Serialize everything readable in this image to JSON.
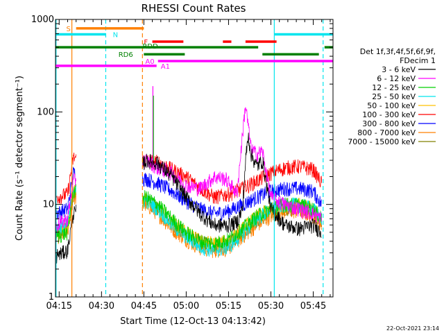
{
  "chart_data": {
    "type": "line",
    "title": "RHESSI Count Rates",
    "xlabel": "Start Time (12-Oct-13 04:13:42)",
    "ylabel": "Count Rate (s⁻¹ detector segment⁻¹)",
    "yscale": "log",
    "ylim": [
      1,
      1000
    ],
    "xlim_minutes": [
      253.7,
      352
    ],
    "x_tick_labels": [
      {
        "minutes": 255,
        "label": "04:15"
      },
      {
        "minutes": 270,
        "label": "04:30"
      },
      {
        "minutes": 285,
        "label": "04:45"
      },
      {
        "minutes": 300,
        "label": "05:00"
      },
      {
        "minutes": 315,
        "label": "05:15"
      },
      {
        "minutes": 330,
        "label": "05:30"
      },
      {
        "minutes": 345,
        "label": "05:45"
      }
    ],
    "y_tick_labels": [
      {
        "value": 1,
        "label": "1"
      },
      {
        "value": 10,
        "label": "10"
      },
      {
        "value": 100,
        "label": "100"
      },
      {
        "value": 1000,
        "label": "1000"
      }
    ],
    "legend_header": [
      "Det 1f,3f,4f,5f,6f,9f,",
      "FDecim 1"
    ],
    "gaps": [
      [
        261,
        284.5
      ]
    ],
    "series": [
      {
        "name": "3 - 6 keV",
        "color": "#000000",
        "t": [
          254,
          258,
          260,
          286,
          290,
          295,
          300,
          305,
          310,
          315,
          318,
          320,
          321,
          322,
          323,
          325,
          327,
          330,
          335,
          340,
          345,
          348
        ],
        "values": [
          2.8,
          3.2,
          8,
          30,
          28,
          20,
          12,
          8,
          6,
          6,
          6.5,
          9,
          30,
          55,
          35,
          26,
          30,
          9,
          6,
          5.5,
          6,
          5
        ]
      },
      {
        "name": "6 - 12 keV",
        "color": "#ff00ff",
        "t": [
          254,
          258,
          260,
          286,
          290,
          295,
          300,
          305,
          310,
          314,
          316,
          318,
          320,
          321,
          322,
          323,
          325,
          327,
          330,
          335,
          340,
          345,
          348
        ],
        "values": [
          6,
          7,
          18,
          30,
          25,
          22,
          16,
          15,
          20,
          19,
          16,
          13,
          60,
          120,
          70,
          40,
          35,
          38,
          12,
          10,
          9,
          8,
          7
        ]
      },
      {
        "name": "12 - 25 keV",
        "color": "#00d000",
        "t": [
          254,
          258,
          260,
          286,
          290,
          295,
          300,
          305,
          310,
          315,
          320,
          325,
          330,
          335,
          340,
          345,
          348
        ],
        "values": [
          4.5,
          5,
          14,
          12,
          10,
          7,
          5,
          4,
          3.8,
          4.2,
          5.5,
          7.5,
          9,
          10,
          10,
          9,
          7
        ]
      },
      {
        "name": "25 - 50 keV",
        "color": "#00e5ee",
        "t": [
          254,
          258,
          260,
          286,
          290,
          295,
          300,
          305,
          310,
          315,
          320,
          325,
          330,
          335,
          340,
          345,
          348
        ],
        "values": [
          5.5,
          6,
          15,
          11,
          9,
          6,
          4.5,
          3.5,
          3.2,
          3.5,
          4.8,
          7,
          9,
          10,
          10,
          9,
          7
        ]
      },
      {
        "name": "50 - 100 keV",
        "color": "#ffc000",
        "t": [
          254,
          258,
          260,
          286,
          290,
          295,
          300,
          305,
          310,
          315,
          320,
          325,
          330,
          335,
          340,
          345,
          348
        ],
        "values": [
          5,
          5.5,
          14,
          11,
          9,
          6.5,
          5,
          4,
          3.8,
          4,
          5.5,
          7.5,
          9,
          10,
          10,
          9,
          7
        ]
      },
      {
        "name": "100 - 300 keV",
        "color": "#ff0000",
        "t": [
          254,
          258,
          260,
          286,
          290,
          295,
          300,
          305,
          310,
          315,
          320,
          325,
          330,
          335,
          340,
          345,
          348
        ],
        "values": [
          12,
          13,
          32,
          30,
          29,
          24,
          20,
          15,
          12,
          13,
          15,
          18,
          22,
          25,
          26,
          24,
          17
        ]
      },
      {
        "name": "300 - 800 keV",
        "color": "#0000ff",
        "t": [
          254,
          258,
          260,
          286,
          290,
          295,
          300,
          305,
          310,
          315,
          320,
          325,
          330,
          335,
          340,
          345,
          348
        ],
        "values": [
          8,
          9,
          22,
          19,
          17,
          14,
          11,
          9,
          8,
          8.5,
          10,
          12,
          14,
          15,
          15,
          14,
          10
        ]
      },
      {
        "name": "800 - 7000 keV",
        "color": "#ff8000",
        "t": [
          254,
          258,
          260,
          286,
          290,
          295,
          300,
          305,
          310,
          315,
          320,
          325,
          330,
          335,
          340,
          345,
          348
        ],
        "values": [
          4.5,
          5,
          12,
          10,
          8,
          5.5,
          4.2,
          3.4,
          3.2,
          3.4,
          4.5,
          6,
          7.5,
          8.5,
          8.5,
          7.5,
          6
        ]
      },
      {
        "name": "7000 - 15000 keV",
        "color": "#808000",
        "t": [
          254,
          258,
          260,
          286,
          290,
          295,
          300,
          305,
          310,
          315,
          320,
          325,
          330,
          335,
          340,
          345,
          348
        ],
        "values": [
          5,
          5.5,
          13,
          11,
          9,
          6,
          4.8,
          4,
          3.6,
          3.8,
          5,
          6.8,
          8.2,
          9.2,
          9.2,
          8.2,
          6.5
        ]
      }
    ],
    "spikes": [
      {
        "t": 288.2,
        "value": 190,
        "color": "#ff00ff"
      },
      {
        "t": 288.4,
        "value": 150,
        "color": "#00d000"
      }
    ],
    "vlines": [
      {
        "t": 253.9,
        "style": "solid",
        "color": "#00e5ee"
      },
      {
        "t": 259.5,
        "style": "solid",
        "color": "#ff8000"
      },
      {
        "t": 271.5,
        "style": "dashed",
        "color": "#00e5ee"
      },
      {
        "t": 284.5,
        "style": "dashed",
        "color": "#ff8000"
      },
      {
        "t": 331.2,
        "style": "solid",
        "color": "#00e5ee"
      },
      {
        "t": 348.5,
        "style": "dashed",
        "color": "#00e5ee"
      }
    ],
    "flag_bars": [
      {
        "label": "S",
        "color": "#ff8000",
        "segments": [
          [
            261,
            285
          ]
        ],
        "label_t": 257.5,
        "label_value": 800,
        "bar_value": 800
      },
      {
        "label": "N",
        "color": "#00e5ee",
        "segments": [
          [
            253.7,
            271.5
          ],
          [
            331.2,
            352
          ]
        ],
        "label_t": 274,
        "label_value": 690,
        "bar_value": 690
      },
      {
        "label": "F",
        "color": "#ff0000",
        "segments": [
          [
            288,
            299
          ],
          [
            313,
            316
          ],
          [
            321,
            332
          ]
        ],
        "label_t": 285,
        "label_value": 575,
        "bar_value": 575
      },
      {
        "label": "RDD",
        "color": "#008000",
        "segments": [
          [
            253.7,
            325.5
          ],
          [
            349,
            352
          ]
        ],
        "label_t": 284.5,
        "label_value": 520,
        "bar_value": 500
      },
      {
        "label": "RD6",
        "color": "#008000",
        "segments": [
          [
            285,
            299.5
          ],
          [
            327,
            347
          ]
        ],
        "label_t": 276,
        "label_value": 420,
        "bar_value": 420
      },
      {
        "label": "A0",
        "color": "#ff00ff",
        "segments": [
          [
            290,
            352
          ]
        ],
        "label_t": 285.5,
        "label_value": 355,
        "bar_value": 355
      },
      {
        "label": "A1",
        "color": "#ff00ff",
        "segments": [
          [
            253.7,
            289.5
          ]
        ],
        "label_t": 291,
        "label_value": 315,
        "bar_value": 315
      }
    ]
  },
  "footer": {
    "timestamp": "22-Oct-2021 23:14"
  }
}
